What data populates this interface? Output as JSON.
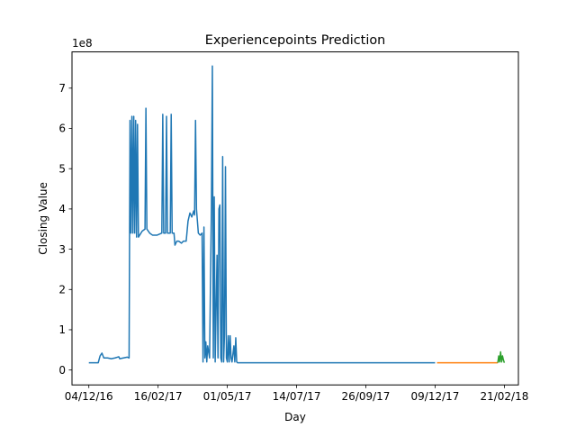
{
  "chart_data": {
    "type": "line",
    "title": "Experiencepoints Prediction",
    "xlabel": "Day",
    "ylabel": "Closing Value",
    "y_multiplier_label": "1e8",
    "x_tick_labels": [
      "04/12/16",
      "16/02/17",
      "01/05/17",
      "14/07/17",
      "26/09/17",
      "09/12/17",
      "21/02/18"
    ],
    "x_ticks": [
      "2016-12-04",
      "2017-02-16",
      "2017-05-01",
      "2017-07-14",
      "2017-09-26",
      "2017-12-09",
      "2018-02-21"
    ],
    "y_tick_labels": [
      "0",
      "1",
      "2",
      "3",
      "4",
      "5",
      "6",
      "7"
    ],
    "y_ticks": [
      0,
      1,
      2,
      3,
      4,
      5,
      6,
      7
    ],
    "xlim": [
      "2016-11-16",
      "2018-03-08"
    ],
    "ylim": [
      -0.37,
      7.9
    ],
    "grid": false,
    "colors": {
      "series_0": "#1f77b4",
      "series_1": "#ff7f0e",
      "series_2": "#2ca02c"
    },
    "series": [
      {
        "points": [
          [
            "2016-12-04",
            0.18
          ],
          [
            "2016-12-14",
            0.18
          ],
          [
            "2016-12-16",
            0.35
          ],
          [
            "2016-12-18",
            0.42
          ],
          [
            "2016-12-20",
            0.3
          ],
          [
            "2016-12-24",
            0.3
          ],
          [
            "2016-12-28",
            0.28
          ],
          [
            "2017-01-01",
            0.3
          ],
          [
            "2017-01-05",
            0.33
          ],
          [
            "2017-01-06",
            0.28
          ],
          [
            "2017-01-10",
            0.3
          ],
          [
            "2017-01-14",
            0.32
          ],
          [
            "2017-01-16",
            0.3
          ],
          [
            "2017-01-17",
            6.2
          ],
          [
            "2017-01-18",
            3.4
          ],
          [
            "2017-01-19",
            6.3
          ],
          [
            "2017-01-20",
            3.4
          ],
          [
            "2017-01-21",
            6.3
          ],
          [
            "2017-01-22",
            3.4
          ],
          [
            "2017-01-23",
            6.2
          ],
          [
            "2017-01-24",
            3.3
          ],
          [
            "2017-01-25",
            6.1
          ],
          [
            "2017-01-26",
            3.3
          ],
          [
            "2017-01-30",
            3.45
          ],
          [
            "2017-02-02",
            3.5
          ],
          [
            "2017-02-03",
            6.5
          ],
          [
            "2017-02-04",
            3.5
          ],
          [
            "2017-02-07",
            3.4
          ],
          [
            "2017-02-10",
            3.35
          ],
          [
            "2017-02-15",
            3.35
          ],
          [
            "2017-02-20",
            3.4
          ],
          [
            "2017-02-21",
            6.35
          ],
          [
            "2017-02-22",
            3.4
          ],
          [
            "2017-02-24",
            3.4
          ],
          [
            "2017-02-25",
            6.3
          ],
          [
            "2017-02-26",
            3.4
          ],
          [
            "2017-03-01",
            3.4
          ],
          [
            "2017-03-02",
            6.35
          ],
          [
            "2017-03-03",
            3.4
          ],
          [
            "2017-03-05",
            3.4
          ],
          [
            "2017-03-06",
            3.1
          ],
          [
            "2017-03-08",
            3.2
          ],
          [
            "2017-03-10",
            3.2
          ],
          [
            "2017-03-13",
            3.15
          ],
          [
            "2017-03-15",
            3.2
          ],
          [
            "2017-03-18",
            3.2
          ],
          [
            "2017-03-20",
            3.7
          ],
          [
            "2017-03-22",
            3.9
          ],
          [
            "2017-03-24",
            3.8
          ],
          [
            "2017-03-26",
            3.95
          ],
          [
            "2017-03-27",
            3.85
          ],
          [
            "2017-03-28",
            6.2
          ],
          [
            "2017-03-29",
            4.0
          ],
          [
            "2017-03-31",
            3.4
          ],
          [
            "2017-04-02",
            3.35
          ],
          [
            "2017-04-04",
            3.4
          ],
          [
            "2017-04-05",
            0.2
          ],
          [
            "2017-04-06",
            3.55
          ],
          [
            "2017-04-07",
            0.3
          ],
          [
            "2017-04-08",
            0.7
          ],
          [
            "2017-04-09",
            0.2
          ],
          [
            "2017-04-10",
            0.6
          ],
          [
            "2017-04-12",
            0.3
          ],
          [
            "2017-04-14",
            4.1
          ],
          [
            "2017-04-15",
            7.55
          ],
          [
            "2017-04-16",
            0.3
          ],
          [
            "2017-04-17",
            4.3
          ],
          [
            "2017-04-18",
            0.2
          ],
          [
            "2017-04-20",
            2.85
          ],
          [
            "2017-04-21",
            0.3
          ],
          [
            "2017-04-22",
            4.0
          ],
          [
            "2017-04-23",
            4.1
          ],
          [
            "2017-04-24",
            0.3
          ],
          [
            "2017-04-25",
            0.2
          ],
          [
            "2017-04-26",
            5.3
          ],
          [
            "2017-04-27",
            0.2
          ],
          [
            "2017-04-28",
            0.9
          ],
          [
            "2017-04-29",
            5.05
          ],
          [
            "2017-04-30",
            0.3
          ],
          [
            "2017-05-01",
            0.2
          ],
          [
            "2017-05-02",
            0.85
          ],
          [
            "2017-05-03",
            0.2
          ],
          [
            "2017-05-04",
            0.85
          ],
          [
            "2017-05-05",
            0.3
          ],
          [
            "2017-05-06",
            0.2
          ],
          [
            "2017-05-08",
            0.6
          ],
          [
            "2017-05-09",
            0.2
          ],
          [
            "2017-05-10",
            0.8
          ],
          [
            "2017-05-11",
            0.2
          ],
          [
            "2017-05-12",
            0.18
          ],
          [
            "2017-12-09",
            0.18
          ]
        ]
      },
      {
        "points": [
          [
            "2017-12-11",
            0.18
          ],
          [
            "2018-02-14",
            0.18
          ]
        ]
      },
      {
        "points": [
          [
            "2018-02-14",
            0.18
          ],
          [
            "2018-02-15",
            0.35
          ],
          [
            "2018-02-16",
            0.2
          ],
          [
            "2018-02-17",
            0.45
          ],
          [
            "2018-02-18",
            0.2
          ],
          [
            "2018-02-19",
            0.35
          ],
          [
            "2018-02-20",
            0.25
          ],
          [
            "2018-02-21",
            0.18
          ]
        ]
      }
    ]
  }
}
